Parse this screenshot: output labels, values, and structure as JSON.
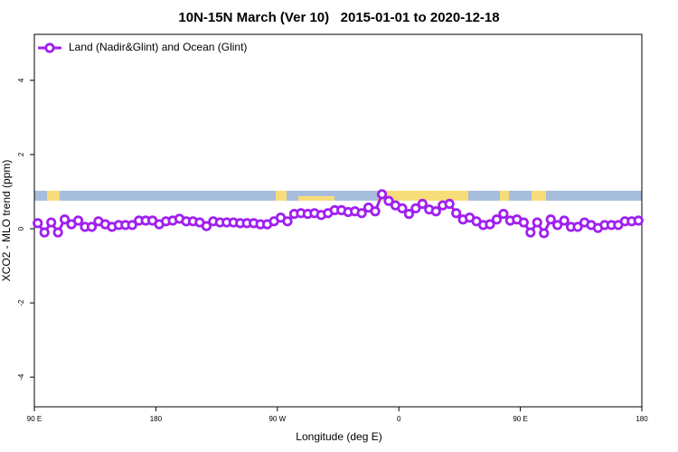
{
  "chart_data": {
    "type": "line",
    "title": "10N-15N March (Ver 10)   2015-01-01 to 2020-12-18",
    "xlabel": "Longitude (deg E)",
    "ylabel": "XCO2 - MLO trend (ppm)",
    "xlim": [
      90,
      540
    ],
    "xticks": [
      {
        "value": 90,
        "label": "90 E"
      },
      180,
      {
        "value": 270,
        "label": "90 W"
      },
      {
        "value": 360,
        "label": "0"
      },
      {
        "value": 450,
        "label": "90 E"
      },
      {
        "value": 540,
        "label": "180"
      }
    ],
    "ylim": [
      -4.8,
      5.24
    ],
    "yticks": [
      -4,
      -2,
      0,
      2,
      4
    ],
    "legend": "top-left",
    "x": [
      92.5,
      97.5,
      102.5,
      107.5,
      112.5,
      117.5,
      122.5,
      127.5,
      132.5,
      137.5,
      142.5,
      147.5,
      152.5,
      157.5,
      162.5,
      167.5,
      172.5,
      177.5,
      182.5,
      187.5,
      192.5,
      197.5,
      202.5,
      207.5,
      212.5,
      217.5,
      222.5,
      227.5,
      232.5,
      237.5,
      242.5,
      247.5,
      252.5,
      257.5,
      262.5,
      267.5,
      272.5,
      277.5,
      282.5,
      287.5,
      292.5,
      297.5,
      302.5,
      307.5,
      312.5,
      317.5,
      322.5,
      327.5,
      332.5,
      337.5,
      342.5,
      347.5,
      352.5,
      357.5,
      362.5,
      367.5,
      372.5,
      377.5,
      382.5,
      387.5,
      392.5,
      397.5,
      402.5,
      407.5,
      412.5,
      417.5,
      422.5,
      427.5,
      432.5,
      437.5,
      442.5,
      447.5,
      452.5,
      457.5,
      462.5,
      467.5,
      472.5,
      477.5,
      482.5,
      487.5,
      492.5,
      497.5,
      502.5,
      507.5,
      512.5,
      517.5,
      522.5,
      527.5,
      532.5,
      537.5
    ],
    "series": [
      {
        "name": "Land (Nadir&Glint) and Ocean (Glint)",
        "color": "#a020f0",
        "values": [
          0.15,
          -0.1,
          0.17,
          -0.1,
          0.25,
          0.12,
          0.22,
          0.05,
          0.05,
          0.2,
          0.12,
          0.05,
          0.1,
          0.1,
          0.1,
          0.22,
          0.22,
          0.22,
          0.12,
          0.2,
          0.22,
          0.27,
          0.2,
          0.2,
          0.17,
          0.07,
          0.2,
          0.17,
          0.17,
          0.17,
          0.15,
          0.15,
          0.15,
          0.12,
          0.12,
          0.2,
          0.3,
          0.2,
          0.4,
          0.42,
          0.4,
          0.42,
          0.37,
          0.42,
          0.5,
          0.5,
          0.45,
          0.47,
          0.42,
          0.57,
          0.47,
          0.93,
          0.75,
          0.63,
          0.55,
          0.4,
          0.55,
          0.67,
          0.52,
          0.47,
          0.63,
          0.67,
          0.42,
          0.25,
          0.3,
          0.2,
          0.1,
          0.12,
          0.25,
          0.4,
          0.22,
          0.25,
          0.17,
          -0.1,
          0.17,
          -0.12,
          0.25,
          0.1,
          0.22,
          0.05,
          0.05,
          0.17,
          0.1,
          0.02,
          0.1,
          0.1,
          0.1,
          0.2,
          0.2,
          0.22
        ]
      }
    ]
  }
}
